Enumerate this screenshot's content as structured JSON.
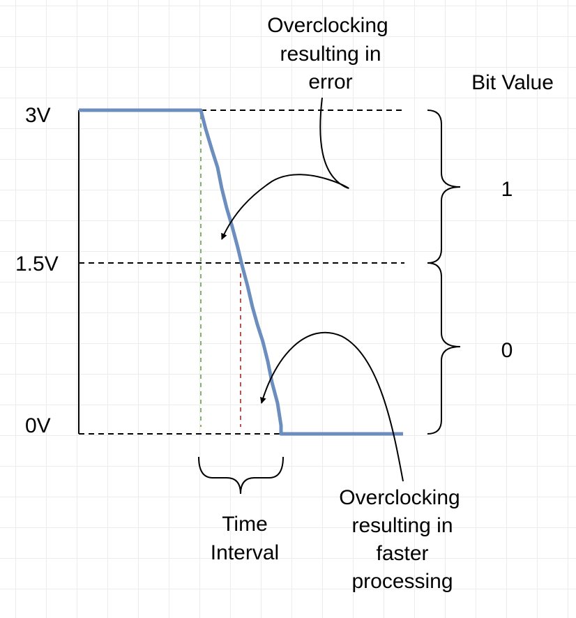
{
  "voltage_labels": {
    "high": "3V",
    "mid": "1.5V",
    "low": "0V"
  },
  "bit_value": {
    "heading": "Bit Value",
    "one": "1",
    "zero": "0"
  },
  "annotations": {
    "error": [
      "Overclocking",
      "resulting in",
      "error"
    ],
    "faster": [
      "Overclocking",
      "resulting in",
      "faster",
      "processing"
    ],
    "interval": [
      "Time",
      "Interval"
    ]
  },
  "colors": {
    "signal": "#6c8ebf",
    "green_marker": "#82b366",
    "red_marker": "#b85450",
    "grid": "#ececec",
    "ink": "#000000"
  }
}
